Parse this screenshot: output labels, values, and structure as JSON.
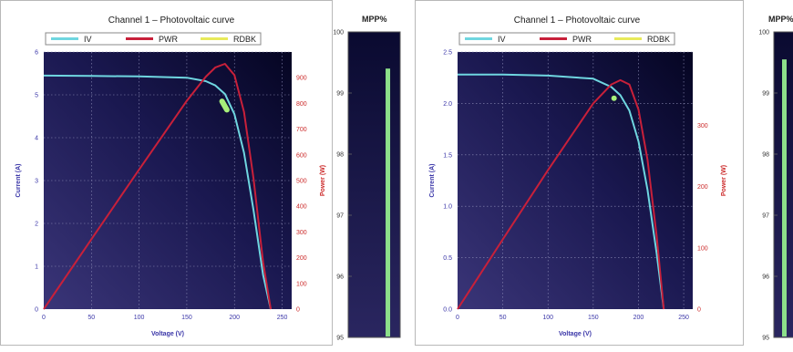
{
  "colors": {
    "background": "#ffffff",
    "plot_background_light": "#3a3578",
    "plot_background_dark": "#050522",
    "iv_curve": "#6fd6e0",
    "power_curve": "#c8203a",
    "readback": "#e8ea5a",
    "left_axis_text": "#3a36a8",
    "right_axis_text": "#cc2b2b",
    "mpp_bar": "#8de08a"
  },
  "panels": [
    {
      "title": "Channel 1 – Photovoltaic curve",
      "legend": [
        "IV",
        "PWR",
        "RDBK"
      ],
      "mpp_title": "MPP%",
      "chart_data": {
        "type": "line",
        "title": "Channel 1 – Photovoltaic curve",
        "xlabel": "Voltage (V)",
        "ylabel": "Current (A)",
        "y2label": "Power (W)",
        "xlim": [
          0,
          260
        ],
        "ylim": [
          0,
          6
        ],
        "y2lim": [
          0,
          1000
        ],
        "x_ticks": [
          "0",
          "50",
          "100",
          "150",
          "200",
          "250"
        ],
        "y_ticks": [
          "0",
          "1",
          "2",
          "3",
          "4",
          "5",
          "6"
        ],
        "y2_ticks": [
          "0",
          "100",
          "200",
          "300",
          "400",
          "500",
          "600",
          "700",
          "800",
          "900"
        ],
        "grid": true,
        "legend_position": "top",
        "series": [
          {
            "name": "IV",
            "axis": "left",
            "x": [
              0,
              50,
              100,
              150,
              170,
              180,
              190,
              200,
              210,
              220,
              230,
              238
            ],
            "y": [
              5.45,
              5.44,
              5.43,
              5.4,
              5.32,
              5.22,
              5.02,
              4.55,
              3.65,
              2.3,
              0.8,
              0
            ]
          },
          {
            "name": "PWR",
            "axis": "right",
            "x": [
              0,
              50,
              100,
              150,
              170,
              180,
              190,
              200,
              210,
              220,
              230,
              238
            ],
            "y": [
              0,
              272,
              543,
              810,
              904,
              940,
              954,
              910,
              767,
              506,
              184,
              0
            ]
          },
          {
            "name": "RDBK",
            "axis": "left",
            "x": [
              187,
              192
            ],
            "y": [
              4.85,
              4.65
            ]
          }
        ],
        "mpp": {
          "value": 99.4,
          "min": 95,
          "max": 100,
          "ticks": [
            "100",
            "99",
            "98",
            "97",
            "96",
            "95"
          ]
        }
      }
    },
    {
      "title": "Channel 1 – Photovoltaic curve",
      "legend": [
        "IV",
        "PWR",
        "RDBK"
      ],
      "mpp_title": "MPP%",
      "chart_data": {
        "type": "line",
        "title": "Channel 1 – Photovoltaic curve",
        "xlabel": "Voltage (V)",
        "ylabel": "Current (A)",
        "y2label": "Power (W)",
        "xlim": [
          0,
          260
        ],
        "ylim": [
          0,
          2.5
        ],
        "y2lim": [
          0,
          420
        ],
        "x_ticks": [
          "0",
          "50",
          "100",
          "150",
          "200",
          "250"
        ],
        "y_ticks": [
          "0.0",
          "0.5",
          "1.0",
          "1.5",
          "2.0",
          "2.5"
        ],
        "y2_ticks": [
          "0",
          "100",
          "200",
          "300"
        ],
        "grid": true,
        "legend_position": "top",
        "series": [
          {
            "name": "IV",
            "axis": "left",
            "x": [
              0,
              50,
              100,
              150,
              170,
              180,
              190,
              200,
              210,
              220,
              228
            ],
            "y": [
              2.28,
              2.28,
              2.27,
              2.24,
              2.16,
              2.08,
              1.93,
              1.63,
              1.16,
              0.55,
              0
            ]
          },
          {
            "name": "PWR",
            "axis": "right",
            "x": [
              0,
              50,
              100,
              150,
              170,
              180,
              190,
              200,
              210,
              220,
              228
            ],
            "y": [
              0,
              114,
              227,
              336,
              367,
              374,
              367,
              326,
              244,
              121,
              0
            ]
          },
          {
            "name": "RDBK",
            "axis": "left",
            "x": [
              173
            ],
            "y": [
              2.05
            ]
          }
        ],
        "mpp": {
          "value": 99.55,
          "min": 95,
          "max": 100,
          "ticks": [
            "100",
            "99",
            "98",
            "97",
            "96",
            "95"
          ]
        }
      }
    }
  ]
}
